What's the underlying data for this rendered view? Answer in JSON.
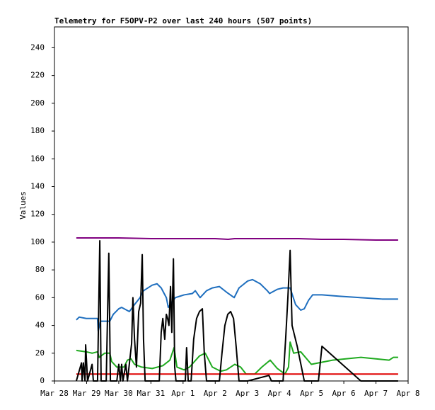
{
  "chart_data": {
    "type": "line",
    "title": "Telemetry for F5OPV-P2 over last 240 hours (507 points)",
    "y_label": "Values",
    "xlim": [
      0,
      11
    ],
    "xticks": [
      {
        "value": 0,
        "label": "Mar 28"
      },
      {
        "value": 1,
        "label": "Mar 29"
      },
      {
        "value": 2,
        "label": "Mar 30"
      },
      {
        "value": 3,
        "label": "Mar 31"
      },
      {
        "value": 4,
        "label": "Apr 1"
      },
      {
        "value": 5,
        "label": "Apr 2"
      },
      {
        "value": 6,
        "label": "Apr 3"
      },
      {
        "value": 7,
        "label": "Apr 4"
      },
      {
        "value": 8,
        "label": "Apr 5"
      },
      {
        "value": 9,
        "label": "Apr 6"
      },
      {
        "value": 10,
        "label": "Apr 7"
      },
      {
        "value": 11,
        "label": "Apr 8"
      }
    ],
    "ylim": [
      0,
      255
    ],
    "yticks": [
      0,
      20,
      40,
      60,
      80,
      100,
      120,
      140,
      160,
      180,
      200,
      220,
      240
    ],
    "series": [
      {
        "color": "#800080",
        "x": [
          0.68,
          2,
          3,
          5,
          5.4,
          5.6,
          7.6,
          8.3,
          9,
          10,
          10.69
        ],
        "values": [
          103,
          103,
          102.5,
          102.5,
          102,
          102.5,
          102.5,
          102,
          102,
          101.5,
          101.5
        ]
      },
      {
        "color": "#1f6fbf",
        "x": [
          0.68,
          0.77,
          0.99,
          1.34,
          1.36,
          1.43,
          1.72,
          1.83,
          2.0,
          2.09,
          2.33,
          2.49,
          2.66,
          2.77,
          3.04,
          3.19,
          3.32,
          3.48,
          3.54,
          3.63,
          3.76,
          4.03,
          4.29,
          4.38,
          4.53,
          4.73,
          4.91,
          5.13,
          5.35,
          5.59,
          5.74,
          6.01,
          6.16,
          6.4,
          6.62,
          6.69,
          6.93,
          7.11,
          7.33,
          7.5,
          7.66,
          7.77,
          7.9,
          8.03,
          8.32,
          8.87,
          9.53,
          10.19,
          10.69
        ],
        "values": [
          44,
          46,
          45,
          45,
          36,
          43,
          43,
          48,
          52,
          53,
          50,
          55,
          60,
          65,
          69,
          70,
          67,
          60,
          53,
          56,
          60,
          62,
          63,
          65,
          60,
          65,
          67,
          68,
          64,
          60,
          67,
          72,
          73,
          70,
          65,
          63,
          66,
          67,
          67,
          55,
          51,
          52,
          58,
          62,
          62,
          61,
          60,
          59,
          59
        ]
      },
      {
        "color": "#1faa1f",
        "x": [
          0.68,
          0.99,
          1.17,
          1.34,
          1.39,
          1.56,
          1.72,
          1.78,
          1.94,
          2.16,
          2.27,
          2.38,
          2.49,
          2.71,
          3.04,
          3.37,
          3.59,
          3.72,
          3.81,
          4.03,
          4.2,
          4.51,
          4.69,
          4.91,
          5.17,
          5.35,
          5.61,
          5.79,
          5.96,
          6.23,
          6.45,
          6.71,
          6.93,
          7.17,
          7.28,
          7.33,
          7.44,
          7.66,
          7.99,
          8.21,
          8.65,
          9.09,
          9.53,
          9.97,
          10.41,
          10.54,
          10.69
        ],
        "values": [
          22,
          21,
          20,
          21,
          17,
          20,
          20,
          14,
          10,
          10,
          15,
          16,
          12,
          10,
          9,
          11,
          15,
          24,
          10,
          8,
          10,
          18,
          20,
          10,
          7,
          8,
          12,
          10,
          5,
          5,
          10,
          15,
          9,
          5,
          10,
          28,
          20,
          21,
          12,
          13,
          15,
          16,
          17,
          16,
          15,
          17,
          17
        ]
      },
      {
        "color": "#e00000",
        "x": [
          0.68,
          10.69
        ],
        "values": [
          5,
          5
        ]
      },
      {
        "color": "#000000",
        "x": [
          0.68,
          0.84,
          0.86,
          0.9,
          0.95,
          0.97,
          1.03,
          1.17,
          1.21,
          1.34,
          1.41,
          1.45,
          1.61,
          1.69,
          1.74,
          1.94,
          2.0,
          2.05,
          2.09,
          2.13,
          2.22,
          2.27,
          2.4,
          2.44,
          2.49,
          2.55,
          2.62,
          2.68,
          2.73,
          2.77,
          2.82,
          3.04,
          3.26,
          3.32,
          3.37,
          3.43,
          3.48,
          3.52,
          3.56,
          3.61,
          3.65,
          3.7,
          3.74,
          3.78,
          3.94,
          4.07,
          4.11,
          4.16,
          4.25,
          4.33,
          4.42,
          4.51,
          4.6,
          4.66,
          4.73,
          5.13,
          5.21,
          5.3,
          5.39,
          5.48,
          5.57,
          5.65,
          5.74,
          6.01,
          6.67,
          6.75,
          7.11,
          7.19,
          7.26,
          7.33,
          7.39,
          7.55,
          7.77,
          8.21,
          8.32,
          9.53,
          10.69
        ],
        "values": [
          0,
          13,
          0,
          13,
          0,
          26,
          0,
          12,
          0,
          0,
          101,
          0,
          0,
          92,
          0,
          0,
          12,
          0,
          12,
          0,
          12,
          0,
          27,
          60,
          30,
          10,
          50,
          56,
          91,
          30,
          0,
          0,
          0,
          35,
          45,
          30,
          48,
          45,
          40,
          68,
          35,
          88,
          10,
          0,
          0,
          0,
          24,
          0,
          0,
          30,
          45,
          50,
          52,
          20,
          0,
          0,
          20,
          40,
          48,
          50,
          45,
          25,
          0,
          0,
          4,
          0,
          0,
          30,
          60,
          94,
          40,
          25,
          0,
          0,
          25,
          0,
          0
        ]
      }
    ]
  }
}
